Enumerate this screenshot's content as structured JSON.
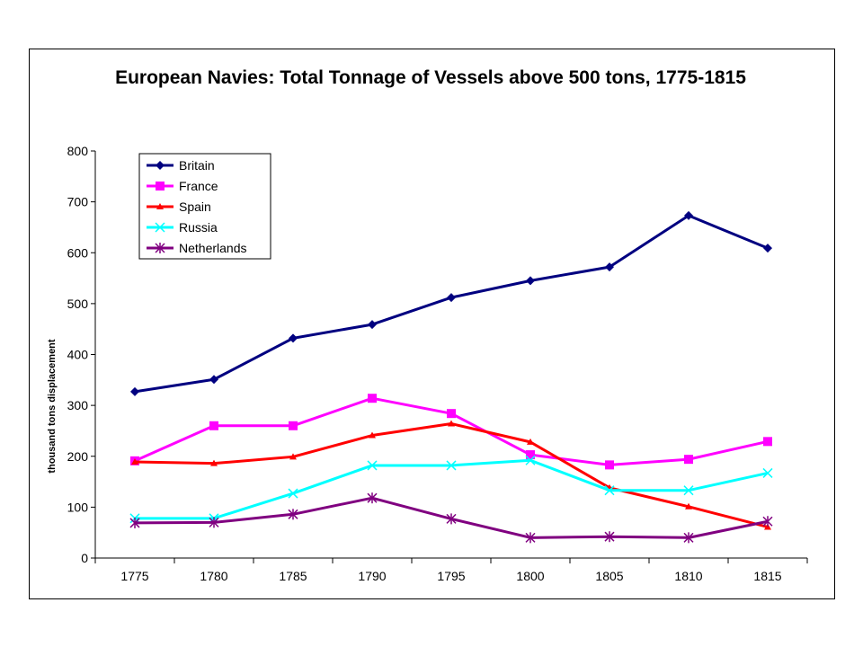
{
  "chart_data": {
    "type": "line",
    "title": "European Navies: Total Tonnage of Vessels above 500 tons, 1775-1815",
    "xlabel": "",
    "ylabel": "thousand tons displacement",
    "x": [
      "1775",
      "1780",
      "1785",
      "1790",
      "1795",
      "1800",
      "1805",
      "1810",
      "1815"
    ],
    "ylim": [
      0,
      800
    ],
    "yticks": [
      0,
      100,
      200,
      300,
      400,
      500,
      600,
      700,
      800
    ],
    "grid": false,
    "legend_position": "top-left",
    "series": [
      {
        "name": "Britain",
        "color": "#000080",
        "marker": "diamond",
        "values": [
          327,
          351,
          432,
          459,
          512,
          545,
          572,
          673,
          609
        ]
      },
      {
        "name": "France",
        "color": "#ff00ff",
        "marker": "square",
        "values": [
          191,
          260,
          260,
          314,
          284,
          203,
          183,
          194,
          229
        ]
      },
      {
        "name": "Spain",
        "color": "#ff0000",
        "marker": "triangle",
        "values": [
          189,
          186,
          199,
          241,
          264,
          228,
          138,
          101,
          61
        ]
      },
      {
        "name": "Russia",
        "color": "#00ffff",
        "marker": "x",
        "values": [
          78,
          78,
          127,
          182,
          182,
          192,
          133,
          133,
          167
        ]
      },
      {
        "name": "Netherlands",
        "color": "#800080",
        "marker": "star",
        "values": [
          69,
          70,
          86,
          118,
          77,
          40,
          42,
          40,
          72
        ]
      }
    ]
  }
}
